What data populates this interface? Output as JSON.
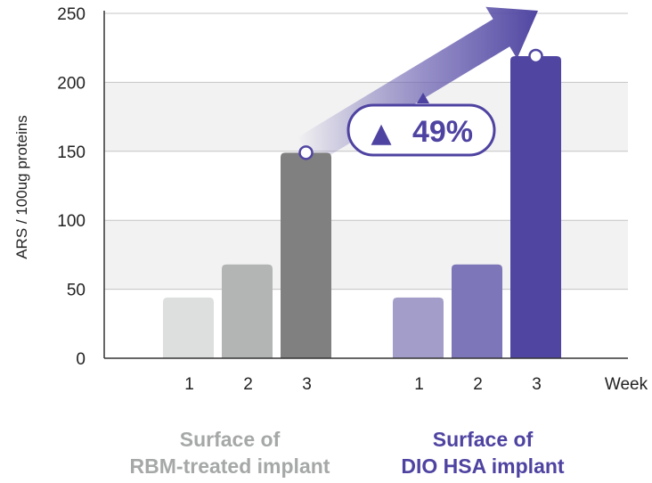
{
  "chart_data": {
    "type": "bar",
    "ylabel": "ARS / 100ug proteins",
    "xlabel": "Week",
    "ylim": [
      0,
      250
    ],
    "yticks": [
      0,
      50,
      100,
      150,
      200,
      250
    ],
    "grid": "horizontal bands",
    "groups": [
      {
        "name_line1": "Surface of",
        "name_line2": "RBM-treated implant",
        "categories": [
          "1",
          "2",
          "3"
        ],
        "values": [
          44,
          68,
          149
        ],
        "colors": [
          "#dcdfde",
          "#b3b5b4",
          "#808080"
        ],
        "label_color": "#a6a8a8"
      },
      {
        "name_line1": "Surface of",
        "name_line2": "DIO HSA implant",
        "categories": [
          "1",
          "2",
          "3"
        ],
        "values": [
          44,
          68,
          219
        ],
        "colors": [
          "#a39ec9",
          "#7d76b9",
          "#5046a2"
        ],
        "label_color": "#4e43a1"
      }
    ],
    "annotation": {
      "text": "49%",
      "symbol": "▲",
      "color": "#4e43a1"
    }
  }
}
